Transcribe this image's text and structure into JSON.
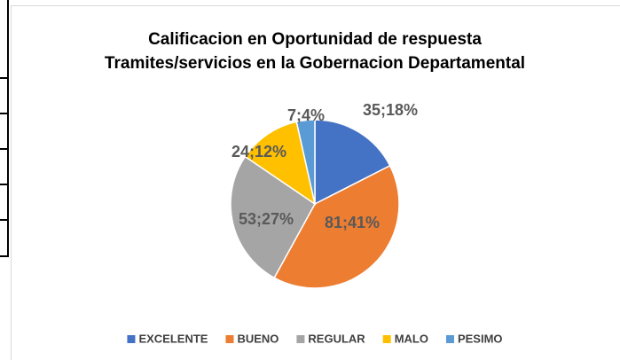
{
  "chart_data": {
    "type": "pie",
    "title": [
      "Calificacion  en Oportunidad de respuesta",
      "Tramites/servicios en la Gobernacion Departamental"
    ],
    "categories": [
      "EXCELENTE",
      "BUENO",
      "REGULAR",
      "MALO",
      "PESIMO"
    ],
    "values": [
      35,
      81,
      53,
      24,
      7
    ],
    "value_labels": [
      "35;18%",
      "81;41%",
      "53;27%",
      "24;12%",
      "7;4%"
    ],
    "colors": [
      "#4472c4",
      "#ed7d31",
      "#a5a5a5",
      "#ffc000",
      "#5b9bd5"
    ],
    "legend": "bottom"
  }
}
